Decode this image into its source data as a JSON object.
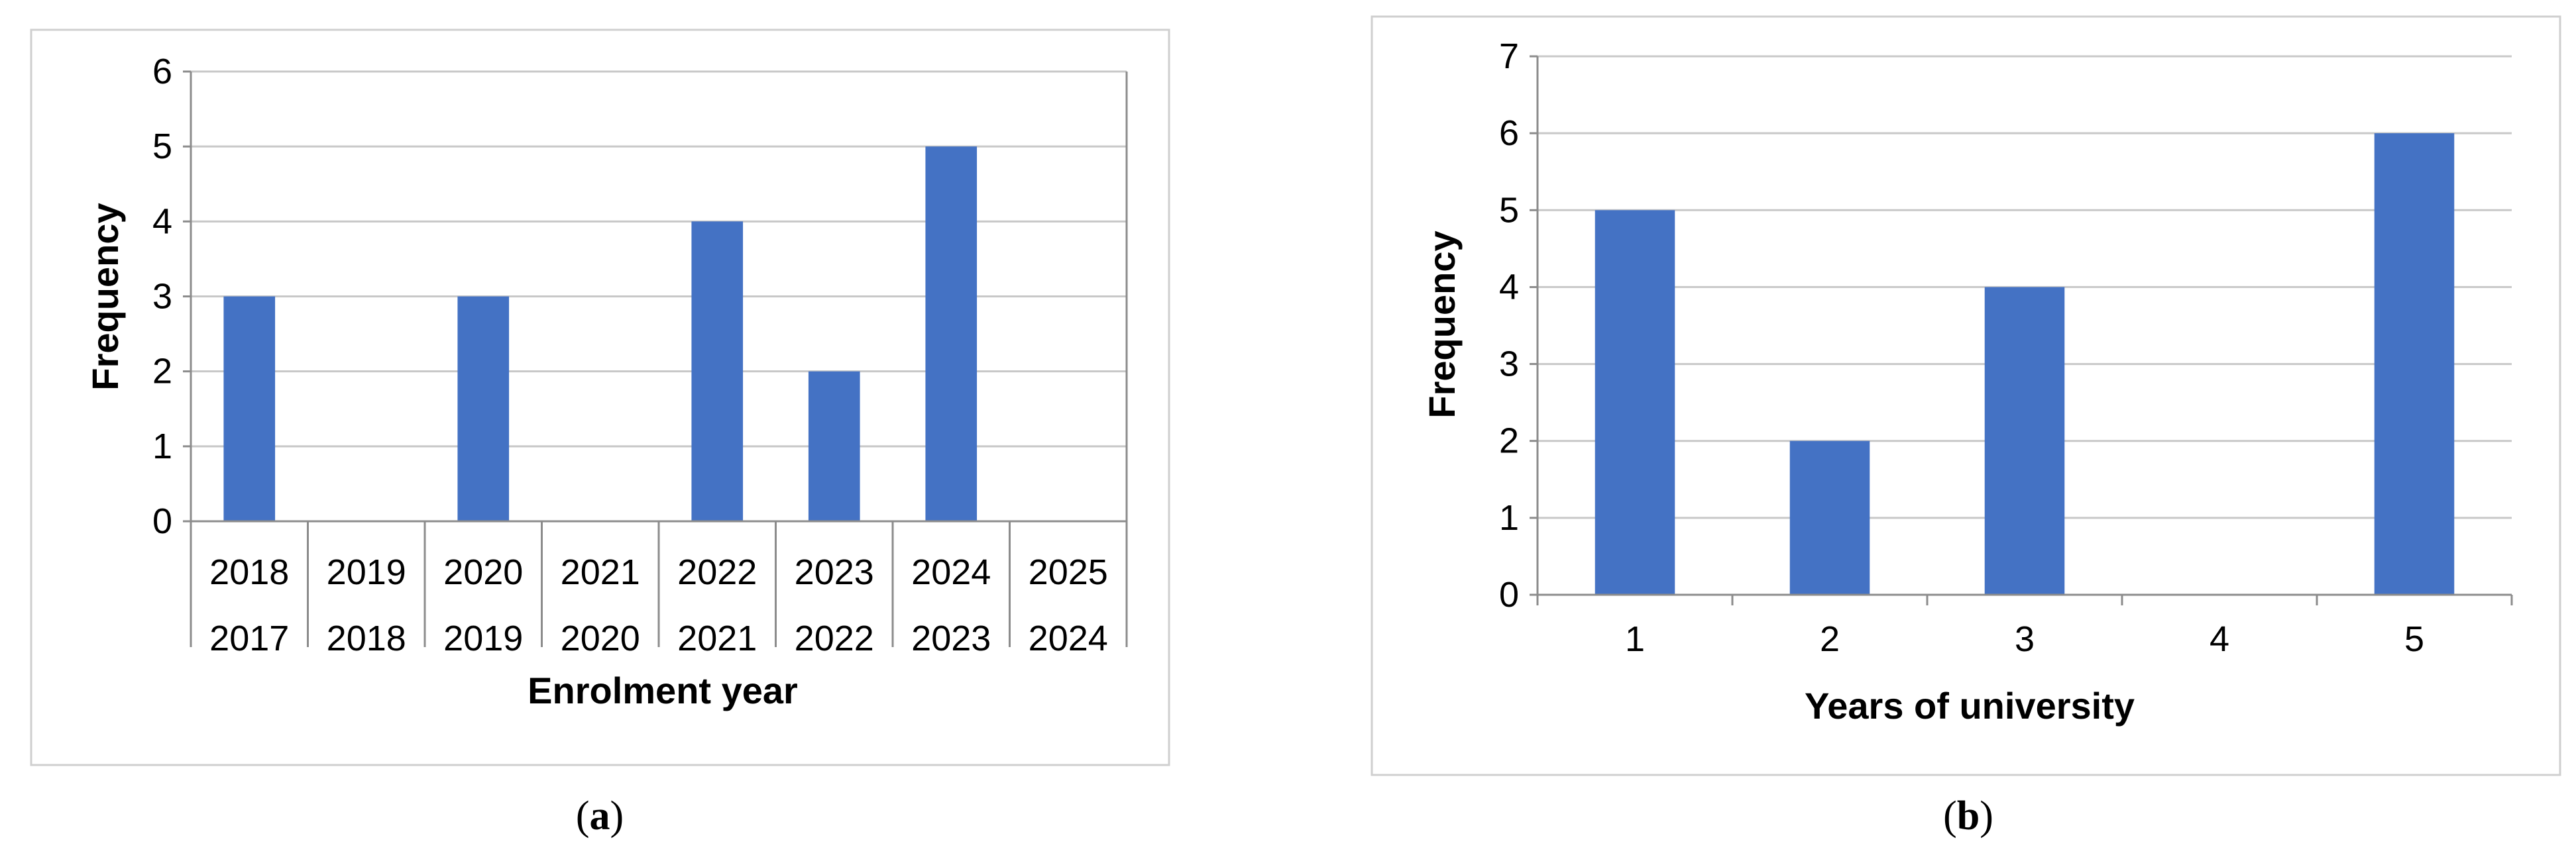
{
  "chart_data": [
    {
      "type": "bar",
      "panel_label": "a",
      "categories": [
        [
          "2018",
          "2017"
        ],
        [
          "2019",
          "2018"
        ],
        [
          "2020",
          "2019"
        ],
        [
          "2021",
          "2020"
        ],
        [
          "2022",
          "2021"
        ],
        [
          "2023",
          "2022"
        ],
        [
          "2024",
          "2023"
        ],
        [
          "2025",
          "2024"
        ]
      ],
      "values": [
        3,
        0,
        3,
        0,
        4,
        2,
        5,
        0
      ],
      "xlabel": "Enrolment year",
      "ylabel": "Frequency",
      "ylim": [
        0,
        6
      ],
      "yticks": [
        0,
        1,
        2,
        3,
        4,
        5,
        6
      ],
      "grid": true,
      "bar_color": "#4472C4"
    },
    {
      "type": "bar",
      "panel_label": "b",
      "categories": [
        "1",
        "2",
        "3",
        "4",
        "5"
      ],
      "values": [
        5,
        2,
        4,
        0,
        6
      ],
      "xlabel": "Years of university",
      "ylabel": "Frequency",
      "ylim": [
        0,
        7
      ],
      "yticks": [
        0,
        1,
        2,
        3,
        4,
        5,
        6,
        7
      ],
      "grid": true,
      "bar_color": "#4472C4"
    }
  ]
}
